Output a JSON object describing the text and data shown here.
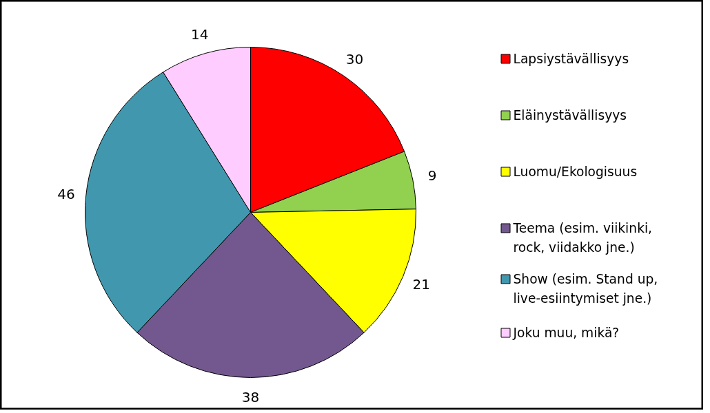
{
  "chart_data": {
    "type": "pie",
    "categories": [
      "Lapsiystävällisyys",
      "Eläinystävällisyys",
      "Luomu/Ekologisuus",
      "Teema (esim. viikinki, rock, viidakko jne.)",
      "Show (esim. Stand up, live-esiintymiset jne.)",
      "Joku muu, mikä?"
    ],
    "values": [
      30,
      9,
      21,
      38,
      46,
      14
    ],
    "colors": [
      "#ff0000",
      "#92d050",
      "#ffff00",
      "#72588e",
      "#4198ae",
      "#ffccff"
    ],
    "data_labels": true,
    "legend": "right"
  }
}
